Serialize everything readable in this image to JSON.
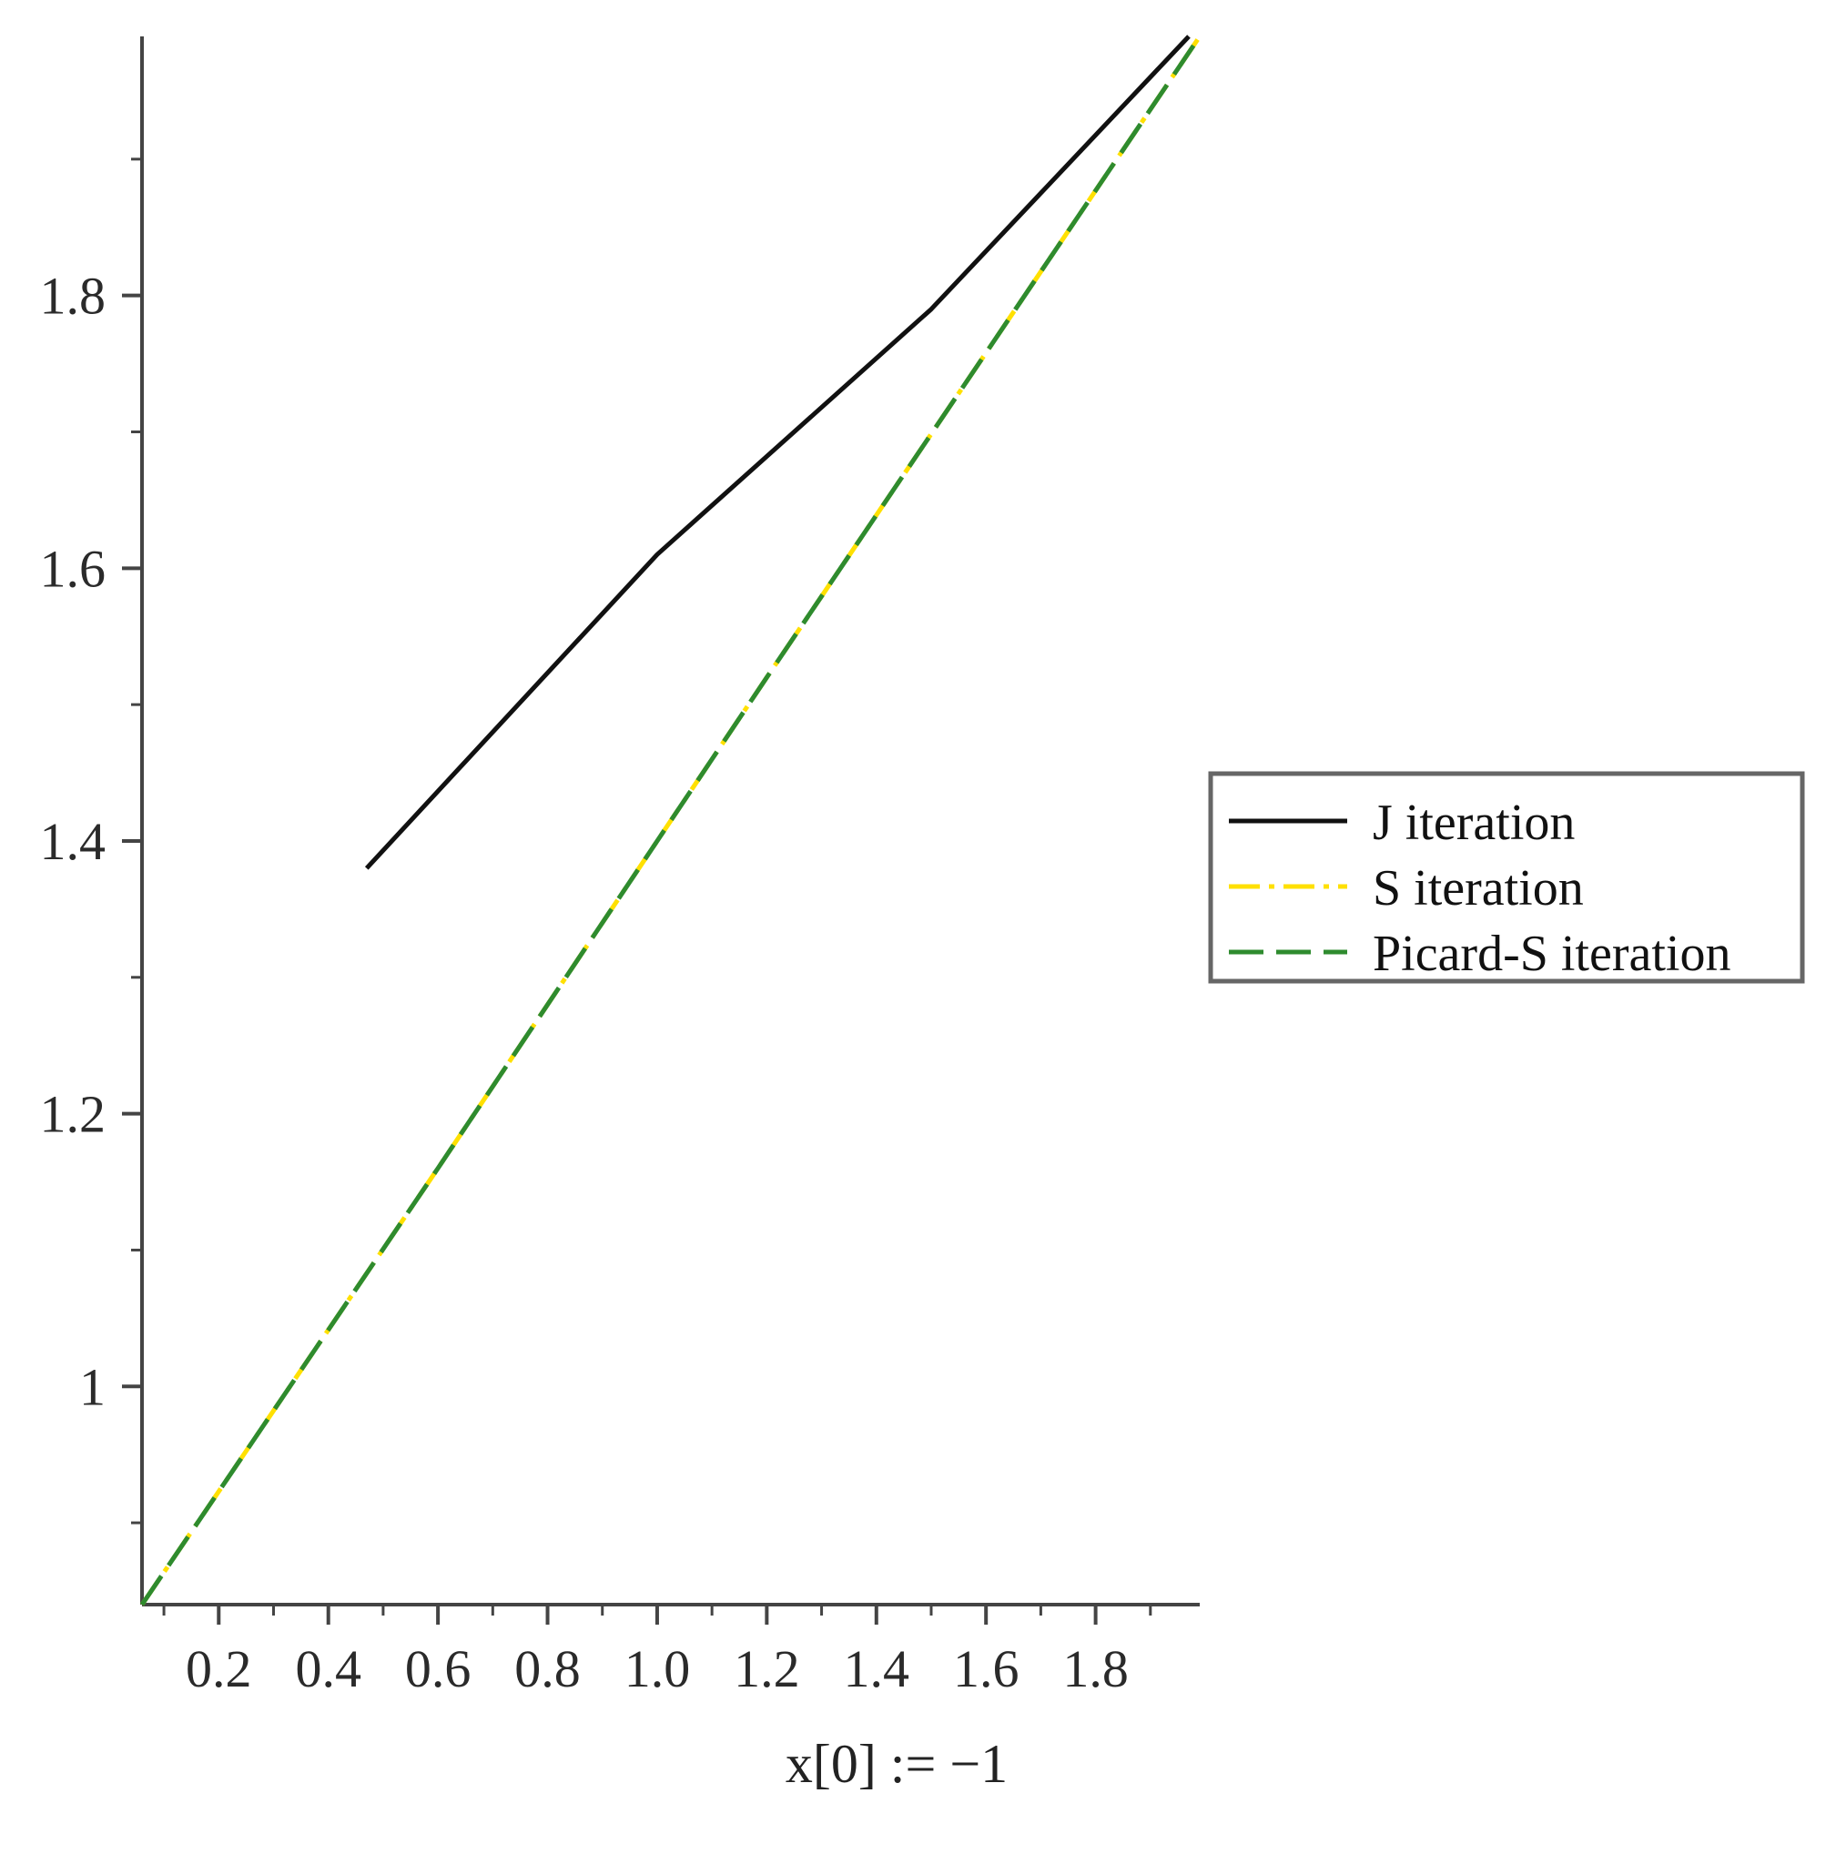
{
  "chart_data": {
    "type": "line",
    "title": "",
    "xlabel": "x[0] := −1",
    "ylabel": "",
    "xlim": [
      0.06,
      1.99
    ],
    "ylim": [
      0.84,
      1.99
    ],
    "x_ticks": [
      {
        "value": 0.2,
        "label": "0.2"
      },
      {
        "value": 0.4,
        "label": "0.4"
      },
      {
        "value": 0.6,
        "label": "0.6"
      },
      {
        "value": 0.8,
        "label": "0.8"
      },
      {
        "value": 1.0,
        "label": "1.0"
      },
      {
        "value": 1.2,
        "label": "1.2"
      },
      {
        "value": 1.4,
        "label": "1.4"
      },
      {
        "value": 1.6,
        "label": "1.6"
      },
      {
        "value": 1.8,
        "label": "1.8"
      }
    ],
    "x_minor_step": 0.1,
    "y_ticks": [
      {
        "value": 1.0,
        "label": "1"
      },
      {
        "value": 1.2,
        "label": "1.2"
      },
      {
        "value": 1.4,
        "label": "1.4"
      },
      {
        "value": 1.6,
        "label": "1.6"
      },
      {
        "value": 1.8,
        "label": "1.8"
      }
    ],
    "y_minor_step": 0.1,
    "grid": false,
    "legend_position": "right",
    "series": [
      {
        "name": "J iteration",
        "color": "#111111",
        "dash": "solid",
        "x": [
          0.47,
          1.0,
          1.5,
          1.97
        ],
        "y": [
          1.38,
          1.61,
          1.79,
          1.99
        ]
      },
      {
        "name": "S iteration",
        "color": "#ffe000",
        "dash": "dashdot",
        "x": [
          0.06,
          0.6,
          1.2,
          1.99
        ],
        "y": [
          0.84,
          1.16,
          1.52,
          1.99
        ]
      },
      {
        "name": "Picard-S iteration",
        "color": "#2e8b2e",
        "dash": "dash",
        "x": [
          0.06,
          0.6,
          1.2,
          1.99
        ],
        "y": [
          0.84,
          1.16,
          1.52,
          1.99
        ]
      }
    ]
  }
}
